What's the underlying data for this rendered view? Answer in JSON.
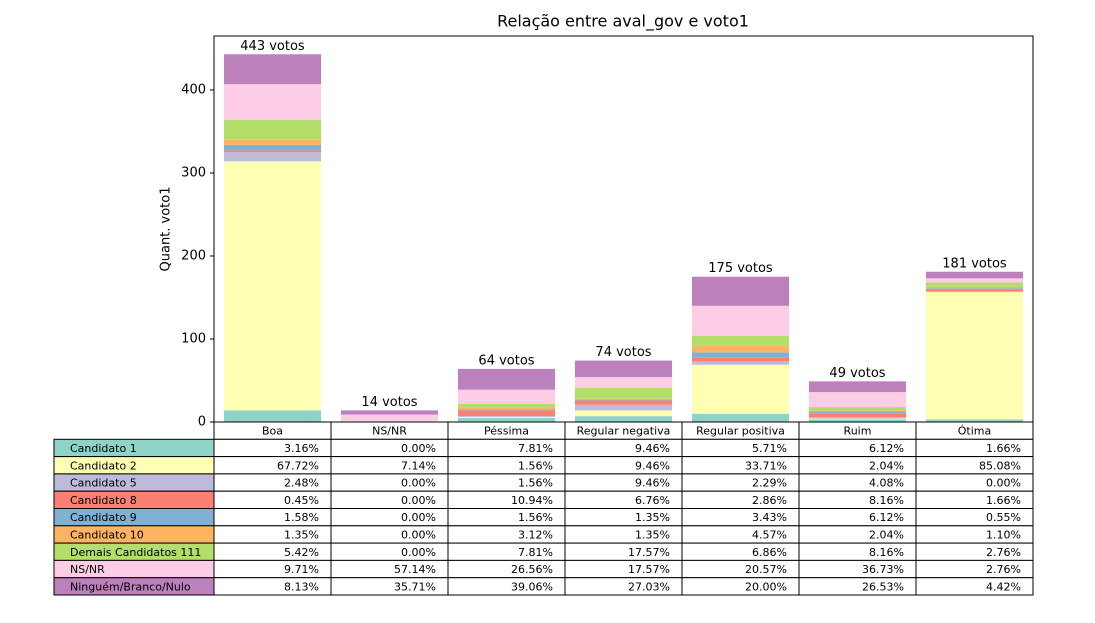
{
  "chart_data": {
    "type": "stacked-bar",
    "title": "Relação entre aval_gov e voto1",
    "y_label": "Quant. voto1",
    "categories": [
      "Boa",
      "NS/NR",
      "Péssima",
      "Regular negativa",
      "Regular positiva",
      "Ruim",
      "Ótima"
    ],
    "series": [
      {
        "name": "Candidato 1",
        "color": "#8dd3c7",
        "values": [
          14,
          0,
          5,
          7,
          10,
          3,
          3
        ]
      },
      {
        "name": "Candidato 2",
        "color": "#ffffb3",
        "values": [
          300,
          1,
          1,
          7,
          59,
          1,
          154
        ]
      },
      {
        "name": "Candidato 5",
        "color": "#bebada",
        "values": [
          11,
          0,
          1,
          7,
          4,
          2,
          0
        ]
      },
      {
        "name": "Candidato 8",
        "color": "#fb8072",
        "values": [
          2,
          0,
          7,
          5,
          5,
          4,
          3
        ]
      },
      {
        "name": "Candidato 9",
        "color": "#80b1d3",
        "values": [
          7,
          0,
          1,
          1,
          6,
          3,
          1
        ]
      },
      {
        "name": "Candidato 10",
        "color": "#fdb462",
        "values": [
          6,
          0,
          2,
          1,
          8,
          1,
          2
        ]
      },
      {
        "name": "Demais Candidatos 111",
        "color": "#b3de69",
        "values": [
          24,
          0,
          5,
          13,
          12,
          4,
          5
        ]
      },
      {
        "name": "NS/NR",
        "color": "#fccde5",
        "values": [
          43,
          8,
          17,
          13,
          36,
          18,
          5
        ]
      },
      {
        "name": "Ninguém/Branco/Nulo",
        "color": "#bc80bd",
        "values": [
          36,
          5,
          25,
          20,
          35,
          13,
          8
        ]
      }
    ],
    "totals": [
      443,
      14,
      64,
      74,
      175,
      49,
      181
    ],
    "total_labels": [
      "443 votos",
      "14 votos",
      "64 votos",
      "74 votos",
      "175 votos",
      "49 votos",
      "181 votos"
    ],
    "ylim": [
      0,
      465
    ],
    "yticks": [
      0,
      100,
      200,
      300,
      400
    ],
    "table": {
      "rows": [
        [
          "3.16%",
          "0.00%",
          "7.81%",
          "9.46%",
          "5.71%",
          "6.12%",
          "1.66%"
        ],
        [
          "67.72%",
          "7.14%",
          "1.56%",
          "9.46%",
          "33.71%",
          "2.04%",
          "85.08%"
        ],
        [
          "2.48%",
          "0.00%",
          "1.56%",
          "9.46%",
          "2.29%",
          "4.08%",
          "0.00%"
        ],
        [
          "0.45%",
          "0.00%",
          "10.94%",
          "6.76%",
          "2.86%",
          "8.16%",
          "1.66%"
        ],
        [
          "1.58%",
          "0.00%",
          "1.56%",
          "1.35%",
          "3.43%",
          "6.12%",
          "0.55%"
        ],
        [
          "1.35%",
          "0.00%",
          "3.12%",
          "1.35%",
          "4.57%",
          "2.04%",
          "1.10%"
        ],
        [
          "5.42%",
          "0.00%",
          "7.81%",
          "17.57%",
          "6.86%",
          "8.16%",
          "2.76%"
        ],
        [
          "9.71%",
          "57.14%",
          "26.56%",
          "17.57%",
          "20.57%",
          "36.73%",
          "2.76%"
        ],
        [
          "8.13%",
          "35.71%",
          "39.06%",
          "27.03%",
          "20.00%",
          "26.53%",
          "4.42%"
        ]
      ]
    }
  }
}
